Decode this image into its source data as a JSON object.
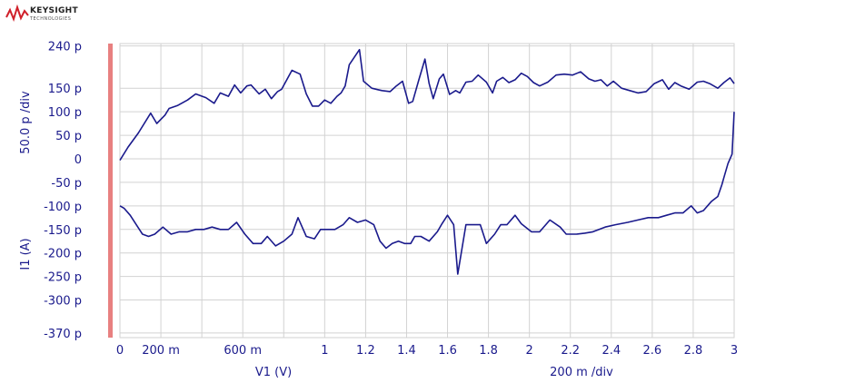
{
  "brand": {
    "name": "KEYSIGHT",
    "sub": "TECHNOLOGIES"
  },
  "colors": {
    "trace": "#1a1a8c",
    "label": "#1a1a8c",
    "grid": "#d2d2d2",
    "marker": "#e88080"
  },
  "chart_data": {
    "type": "line",
    "x_axis_label": "V1 (V)",
    "x_scale_label": "200 m /div",
    "y_axis_label": "I1 (A)",
    "y_scale_label": "50.0 p /div",
    "xlim": [
      0,
      3
    ],
    "ylim": [
      -380,
      245
    ],
    "x_ticks": [
      {
        "v": 0,
        "label": "0"
      },
      {
        "v": 0.2,
        "label": "200 m"
      },
      {
        "v": 0.6,
        "label": "600 m"
      },
      {
        "v": 1.0,
        "label": "1"
      },
      {
        "v": 1.2,
        "label": "1.2"
      },
      {
        "v": 1.4,
        "label": "1.4"
      },
      {
        "v": 1.6,
        "label": "1.6"
      },
      {
        "v": 1.8,
        "label": "1.8"
      },
      {
        "v": 2.0,
        "label": "2"
      },
      {
        "v": 2.2,
        "label": "2.2"
      },
      {
        "v": 2.4,
        "label": "2.4"
      },
      {
        "v": 2.6,
        "label": "2.6"
      },
      {
        "v": 2.8,
        "label": "2.8"
      },
      {
        "v": 3.0,
        "label": "3"
      }
    ],
    "y_ticks": [
      {
        "v": 240,
        "label": "240 p"
      },
      {
        "v": 150,
        "label": "150 p"
      },
      {
        "v": 100,
        "label": "100 p"
      },
      {
        "v": 50,
        "label": "50 p"
      },
      {
        "v": 0,
        "label": "0"
      },
      {
        "v": -50,
        "label": "-50 p"
      },
      {
        "v": -100,
        "label": "-100 p"
      },
      {
        "v": -150,
        "label": "-150 p"
      },
      {
        "v": -200,
        "label": "-200 p"
      },
      {
        "v": -250,
        "label": "-250 p"
      },
      {
        "v": -300,
        "label": "-300 p"
      },
      {
        "v": -370,
        "label": "-370 p"
      }
    ],
    "series": [
      {
        "points": [
          [
            0.0,
            -3
          ],
          [
            0.04,
            25
          ],
          [
            0.09,
            55
          ],
          [
            0.15,
            97
          ],
          [
            0.18,
            75
          ],
          [
            0.22,
            93
          ],
          [
            0.24,
            107
          ],
          [
            0.28,
            113
          ],
          [
            0.33,
            125
          ],
          [
            0.37,
            138
          ],
          [
            0.42,
            130
          ],
          [
            0.46,
            118
          ],
          [
            0.49,
            140
          ],
          [
            0.53,
            133
          ],
          [
            0.56,
            157
          ],
          [
            0.59,
            140
          ],
          [
            0.62,
            155
          ],
          [
            0.64,
            157
          ],
          [
            0.68,
            138
          ],
          [
            0.71,
            148
          ],
          [
            0.74,
            128
          ],
          [
            0.77,
            143
          ],
          [
            0.79,
            148
          ],
          [
            0.84,
            188
          ],
          [
            0.88,
            180
          ],
          [
            0.91,
            138
          ],
          [
            0.94,
            112
          ],
          [
            0.97,
            112
          ],
          [
            1.0,
            125
          ],
          [
            1.03,
            118
          ],
          [
            1.06,
            133
          ],
          [
            1.08,
            140
          ],
          [
            1.1,
            155
          ],
          [
            1.12,
            200
          ],
          [
            1.17,
            232
          ],
          [
            1.19,
            165
          ],
          [
            1.23,
            150
          ],
          [
            1.26,
            147
          ],
          [
            1.28,
            145
          ],
          [
            1.32,
            143
          ],
          [
            1.35,
            155
          ],
          [
            1.38,
            165
          ],
          [
            1.41,
            118
          ],
          [
            1.43,
            122
          ],
          [
            1.46,
            168
          ],
          [
            1.49,
            212
          ],
          [
            1.51,
            160
          ],
          [
            1.53,
            128
          ],
          [
            1.56,
            170
          ],
          [
            1.58,
            180
          ],
          [
            1.61,
            137
          ],
          [
            1.64,
            145
          ],
          [
            1.66,
            140
          ],
          [
            1.69,
            163
          ],
          [
            1.72,
            165
          ],
          [
            1.75,
            178
          ],
          [
            1.79,
            163
          ],
          [
            1.82,
            140
          ],
          [
            1.84,
            165
          ],
          [
            1.87,
            173
          ],
          [
            1.9,
            162
          ],
          [
            1.93,
            168
          ],
          [
            1.96,
            182
          ],
          [
            1.99,
            175
          ],
          [
            2.02,
            162
          ],
          [
            2.05,
            155
          ],
          [
            2.09,
            163
          ],
          [
            2.13,
            178
          ],
          [
            2.17,
            180
          ],
          [
            2.21,
            178
          ],
          [
            2.25,
            185
          ],
          [
            2.29,
            170
          ],
          [
            2.32,
            165
          ],
          [
            2.35,
            168
          ],
          [
            2.38,
            155
          ],
          [
            2.41,
            165
          ],
          [
            2.45,
            150
          ],
          [
            2.49,
            145
          ],
          [
            2.53,
            140
          ],
          [
            2.57,
            143
          ],
          [
            2.61,
            160
          ],
          [
            2.65,
            168
          ],
          [
            2.68,
            148
          ],
          [
            2.71,
            162
          ],
          [
            2.74,
            155
          ],
          [
            2.78,
            148
          ],
          [
            2.82,
            163
          ],
          [
            2.85,
            165
          ],
          [
            2.88,
            160
          ],
          [
            2.92,
            150
          ],
          [
            2.95,
            162
          ],
          [
            2.98,
            172
          ],
          [
            3.0,
            160
          ]
        ]
      },
      {
        "points": [
          [
            3.0,
            100
          ],
          [
            2.99,
            10
          ],
          [
            2.97,
            -10
          ],
          [
            2.95,
            -40
          ],
          [
            2.94,
            -55
          ],
          [
            2.92,
            -80
          ],
          [
            2.89,
            -90
          ],
          [
            2.87,
            -100
          ],
          [
            2.85,
            -110
          ],
          [
            2.82,
            -115
          ],
          [
            2.79,
            -100
          ],
          [
            2.75,
            -115
          ],
          [
            2.71,
            -115
          ],
          [
            2.67,
            -120
          ],
          [
            2.63,
            -125
          ],
          [
            2.58,
            -125
          ],
          [
            2.53,
            -130
          ],
          [
            2.48,
            -135
          ],
          [
            2.42,
            -140
          ],
          [
            2.37,
            -145
          ],
          [
            2.31,
            -155
          ],
          [
            2.27,
            -158
          ],
          [
            2.23,
            -160
          ],
          [
            2.18,
            -160
          ],
          [
            2.15,
            -145
          ],
          [
            2.1,
            -130
          ],
          [
            2.05,
            -155
          ],
          [
            2.01,
            -155
          ],
          [
            1.96,
            -138
          ],
          [
            1.93,
            -120
          ],
          [
            1.89,
            -140
          ],
          [
            1.86,
            -140
          ],
          [
            1.83,
            -160
          ],
          [
            1.79,
            -180
          ],
          [
            1.76,
            -140
          ],
          [
            1.73,
            -140
          ],
          [
            1.69,
            -140
          ],
          [
            1.65,
            -245
          ],
          [
            1.63,
            -140
          ],
          [
            1.6,
            -120
          ],
          [
            1.57,
            -140
          ],
          [
            1.55,
            -155
          ],
          [
            1.51,
            -175
          ],
          [
            1.47,
            -165
          ],
          [
            1.44,
            -165
          ],
          [
            1.42,
            -180
          ],
          [
            1.39,
            -180
          ],
          [
            1.36,
            -175
          ],
          [
            1.33,
            -180
          ],
          [
            1.3,
            -190
          ],
          [
            1.27,
            -175
          ],
          [
            1.24,
            -140
          ],
          [
            1.2,
            -130
          ],
          [
            1.16,
            -135
          ],
          [
            1.12,
            -125
          ],
          [
            1.09,
            -140
          ],
          [
            1.05,
            -150
          ],
          [
            1.01,
            -150
          ],
          [
            0.98,
            -150
          ],
          [
            0.95,
            -170
          ],
          [
            0.91,
            -165
          ],
          [
            0.87,
            -125
          ],
          [
            0.84,
            -160
          ],
          [
            0.8,
            -175
          ],
          [
            0.76,
            -185
          ],
          [
            0.72,
            -165
          ],
          [
            0.69,
            -180
          ],
          [
            0.65,
            -180
          ],
          [
            0.61,
            -160
          ],
          [
            0.57,
            -135
          ],
          [
            0.53,
            -150
          ],
          [
            0.49,
            -150
          ],
          [
            0.45,
            -145
          ],
          [
            0.41,
            -150
          ],
          [
            0.37,
            -150
          ],
          [
            0.33,
            -155
          ],
          [
            0.29,
            -155
          ],
          [
            0.25,
            -160
          ],
          [
            0.21,
            -145
          ],
          [
            0.17,
            -160
          ],
          [
            0.14,
            -165
          ],
          [
            0.11,
            -160
          ],
          [
            0.08,
            -140
          ],
          [
            0.05,
            -120
          ],
          [
            0.02,
            -105
          ],
          [
            0.0,
            -100
          ]
        ]
      }
    ]
  }
}
